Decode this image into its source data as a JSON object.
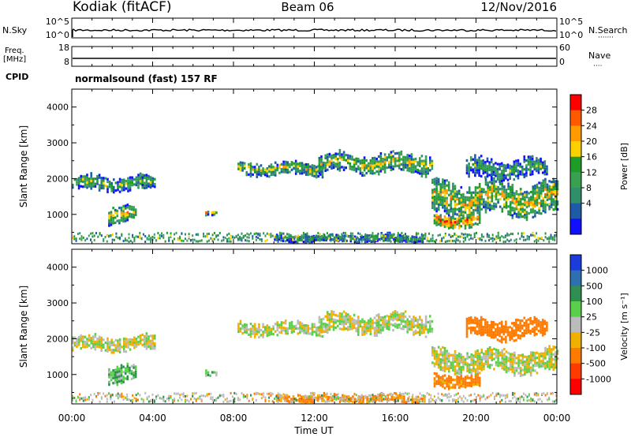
{
  "header": {
    "station": "Kodiak (fitACF)",
    "beam": "Beam 06",
    "date": "12/Nov/2016"
  },
  "noise_panel": {
    "left_label": "N.Sky",
    "right_label": "N.Search",
    "right_dots": "·······",
    "left_ticks": [
      "10^5",
      "10^0"
    ],
    "right_ticks": [
      "10^5",
      "10^0"
    ]
  },
  "freq_panel": {
    "left_label_1": "Freq.",
    "left_label_2": "[MHz]",
    "right_label": "Nave",
    "right_dots": "····",
    "left_ticks": [
      "18",
      "8"
    ],
    "right_ticks": [
      "60",
      "0"
    ]
  },
  "cpid": {
    "label": "CPID",
    "value": "normalsound (fast) 157 RF"
  },
  "power_panel": {
    "ylabel": "Slant Range [km]",
    "colorbar_label": "Power [dB]",
    "colorbar_ticks": [
      "28",
      "24",
      "20",
      "16",
      "12",
      "8",
      "4"
    ],
    "colorbar_colors": [
      "#ff0000",
      "#ff5a00",
      "#ff9a00",
      "#ffd000",
      "#1f9b28",
      "#38a050",
      "#2f8f6a",
      "#1e5aa8",
      "#1010ff"
    ]
  },
  "velocity_panel": {
    "ylabel": "Slant Range [km]",
    "colorbar_label": "Velocity [m s⁻¹]",
    "colorbar_ticks": [
      "1000",
      "500",
      "100",
      "25",
      "-25",
      "-100",
      "-500",
      "-1000"
    ],
    "colorbar_colors": [
      "#1a3cdc",
      "#2e6fb0",
      "#2e8f50",
      "#5ad04a",
      "#bbbbbb",
      "#f0b000",
      "#ff7a00",
      "#ff3a00",
      "#ff0000"
    ]
  },
  "xaxis": {
    "label": "Time UT",
    "ticks": [
      "00:00",
      "04:00",
      "08:00",
      "12:00",
      "16:00",
      "20:00",
      "00:00"
    ]
  },
  "chart_data": [
    {
      "type": "heatmap",
      "title": "Power",
      "ylabel": "Slant Range [km]",
      "xlabel": "Time UT",
      "x_range_hours": [
        0,
        24
      ],
      "ylim": [
        180,
        4500
      ],
      "y_ticks": [
        1000,
        2000,
        3000,
        4000
      ],
      "colorbar": {
        "label": "Power [dB]",
        "ticks": [
          4,
          8,
          12,
          16,
          20,
          24,
          28
        ],
        "range": [
          0,
          30
        ]
      },
      "bands": [
        {
          "t0": 0.0,
          "t1": 4.1,
          "r0": 1620,
          "r1": 2060,
          "value": 14
        },
        {
          "t0": 1.8,
          "t1": 3.2,
          "r0": 700,
          "r1": 1250,
          "value": 18
        },
        {
          "t0": 6.6,
          "t1": 7.2,
          "r0": 950,
          "r1": 1100,
          "value": 18
        },
        {
          "t0": 8.2,
          "t1": 12.4,
          "r0": 2050,
          "r1": 2450,
          "value": 16
        },
        {
          "t0": 12.2,
          "t1": 17.8,
          "r0": 2100,
          "r1": 2700,
          "value": 16
        },
        {
          "t0": 10.0,
          "t1": 17.5,
          "r0": 200,
          "r1": 420,
          "value": 12
        },
        {
          "t0": 17.8,
          "t1": 24.0,
          "r0": 900,
          "r1": 1900,
          "value": 18
        },
        {
          "t0": 17.9,
          "t1": 20.2,
          "r0": 600,
          "r1": 1000,
          "value": 24
        },
        {
          "t0": 19.5,
          "t1": 23.5,
          "r0": 1950,
          "r1": 2550,
          "value": 12
        }
      ]
    },
    {
      "type": "heatmap",
      "title": "Velocity",
      "ylabel": "Slant Range [km]",
      "xlabel": "Time UT",
      "x_range_hours": [
        0,
        24
      ],
      "ylim": [
        180,
        4500
      ],
      "y_ticks": [
        1000,
        2000,
        3000,
        4000
      ],
      "colorbar": {
        "label": "Velocity [m s⁻¹]",
        "ticks": [
          1000,
          500,
          100,
          25,
          -25,
          -100,
          -500,
          -1000
        ],
        "range": [
          -1200,
          1200
        ]
      },
      "bands": [
        {
          "t0": 0.0,
          "t1": 4.1,
          "r0": 1620,
          "r1": 2060,
          "value": 0
        },
        {
          "t0": 1.8,
          "t1": 3.2,
          "r0": 700,
          "r1": 1250,
          "value": 80
        },
        {
          "t0": 6.6,
          "t1": 7.2,
          "r0": 950,
          "r1": 1100,
          "value": 80
        },
        {
          "t0": 8.2,
          "t1": 12.4,
          "r0": 2050,
          "r1": 2450,
          "value": 0
        },
        {
          "t0": 12.2,
          "t1": 17.8,
          "r0": 2100,
          "r1": 2700,
          "value": 0
        },
        {
          "t0": 10.0,
          "t1": 17.5,
          "r0": 200,
          "r1": 420,
          "value": -120
        },
        {
          "t0": 17.8,
          "t1": 24.0,
          "r0": 1000,
          "r1": 1700,
          "value": 0
        },
        {
          "t0": 17.9,
          "t1": 20.2,
          "r0": 600,
          "r1": 1000,
          "value": -150
        },
        {
          "t0": 19.5,
          "t1": 23.5,
          "r0": 1950,
          "r1": 2550,
          "value": -400
        }
      ]
    }
  ]
}
